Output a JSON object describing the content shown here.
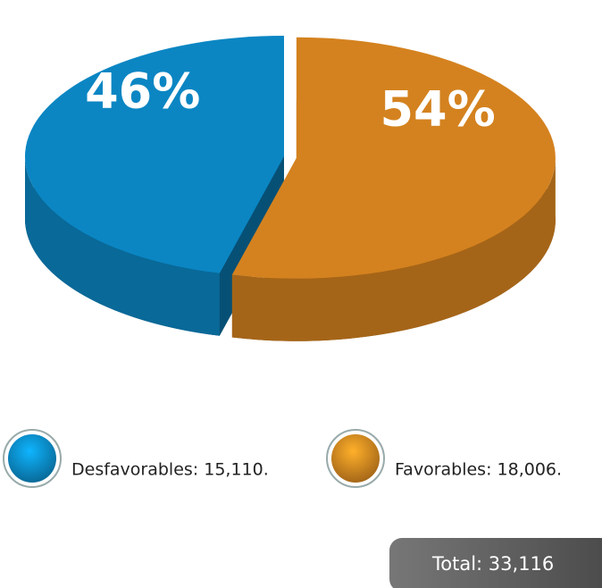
{
  "chart_data": {
    "type": "pie3d",
    "values": [
      46,
      54
    ],
    "value_labels": [
      "46%",
      "54%"
    ],
    "colors": [
      "#0b86c3",
      "#d4821f"
    ],
    "legend_labels": [
      "Desfavorables: 15,110.",
      "Favorables: 18,006."
    ],
    "total_label": "Total: 33,116"
  }
}
